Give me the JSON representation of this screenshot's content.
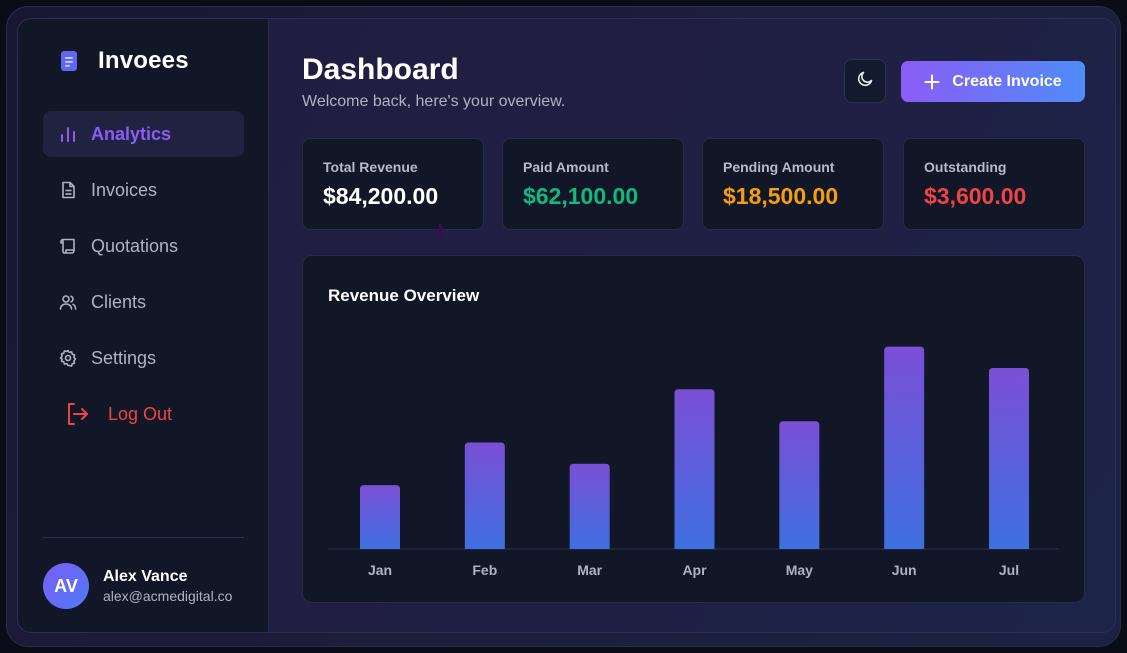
{
  "brand": {
    "name": "Invoees",
    "icon": "document-icon",
    "accent": "#6366f1"
  },
  "sidebar": {
    "items": [
      {
        "label": "Analytics",
        "icon": "bar-chart-icon",
        "active": true
      },
      {
        "label": "Invoices",
        "icon": "file-text-icon"
      },
      {
        "label": "Quotations",
        "icon": "scroll-icon"
      },
      {
        "label": "Clients",
        "icon": "users-icon"
      },
      {
        "label": "Settings",
        "icon": "gear-icon"
      }
    ],
    "logout": {
      "label": "Log Out",
      "icon": "log-out-icon",
      "color": "#ef4444"
    }
  },
  "user": {
    "initials": "AV",
    "name": "Alex Vance",
    "email": "alex@acmedigital.co"
  },
  "header": {
    "title": "Dashboard",
    "subtitle": "Welcome back, here's your overview.",
    "theme_icon": "moon-icon",
    "create_label": "Create Invoice"
  },
  "stats": [
    {
      "label": "Total Revenue",
      "value": "$84,200.00",
      "color": "#ffffff"
    },
    {
      "label": "Paid Amount",
      "value": "$62,100.00",
      "color": "#10b981"
    },
    {
      "label": "Pending Amount",
      "value": "$18,500.00",
      "color": "#f59e0b"
    },
    {
      "label": "Outstanding",
      "value": "$3,600.00",
      "color": "#ef4444"
    }
  ],
  "chart": {
    "title": "Revenue Overview"
  },
  "chart_data": {
    "type": "bar",
    "categories": [
      "Jan",
      "Feb",
      "Mar",
      "Apr",
      "May",
      "Jun",
      "Jul"
    ],
    "values": [
      30,
      50,
      40,
      75,
      60,
      95,
      85
    ],
    "ylim": [
      0,
      100
    ],
    "grid": false,
    "bar_gradient": [
      "#7a4fd6",
      "#3e6fe0"
    ]
  }
}
